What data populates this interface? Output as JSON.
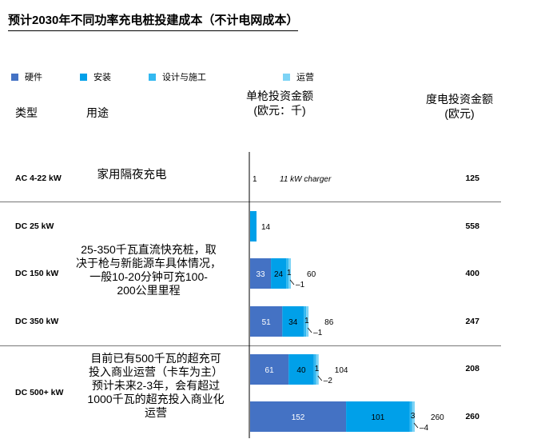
{
  "title": "预计2030年不同功率充电桩投建成本（不计电网成本）",
  "legend": [
    {
      "name": "硬件",
      "color": "#4472C4"
    },
    {
      "name": "安装",
      "color": "#00A0E9"
    },
    {
      "name": "设计与施工",
      "color": "#33B8F0"
    },
    {
      "name": "运营",
      "color": "#7DD3F5"
    }
  ],
  "headers": {
    "type": "类型",
    "usage": "用途",
    "invest_line1": "单枪投资金额",
    "invest_line2": "(欧元：千)",
    "kwh_line1": "度电投资金额",
    "kwh_line2": "(欧元)"
  },
  "usages": {
    "home": "家用隔夜充电",
    "fast_line1": "25-350千瓦直流快充桩，取",
    "fast_line2": "决于枪与新能源车具体情况，",
    "fast_line3": "一般10-20分钟可充100-",
    "fast_line4": "200公里里程",
    "ultra_line1": "目前已有500千瓦的超充可",
    "ultra_line2": "投入商业运营（卡车为主）",
    "ultra_line3": "预计未来2-3年，会有超过",
    "ultra_line4": "1000千瓦的超充投入商业化",
    "ultra_line5": "运营"
  },
  "chart_data": {
    "type": "bar",
    "orientation": "horizontal",
    "stacked": true,
    "xlabel": "单枪投资金额 (欧元：千)",
    "series_names": [
      "硬件",
      "安装",
      "设计与施工",
      "运营"
    ],
    "rows": [
      {
        "category": "AC 4-22 kW",
        "values": [
          1,
          0,
          0,
          0
        ],
        "total_label": "1",
        "annotation": "11 kW charger",
        "per_kwh": "125"
      },
      {
        "category": "DC 25 kW",
        "values": [
          14,
          0,
          0,
          0
        ],
        "total_label": "14",
        "per_kwh": "558"
      },
      {
        "category": "DC 150 kW",
        "values": [
          33,
          24,
          1,
          1
        ],
        "total_label": "60",
        "per_kwh": "400"
      },
      {
        "category": "DC 350 kW",
        "values": [
          51,
          34,
          1,
          1
        ],
        "total_label": "86",
        "per_kwh": "247"
      },
      {
        "category": "DC 500+ kW",
        "values": [
          61,
          40,
          1,
          2
        ],
        "total_label": "104",
        "per_kwh": "208"
      },
      {
        "category": "",
        "values": [
          152,
          101,
          3,
          4
        ],
        "total_label": "260",
        "per_kwh": "260"
      }
    ],
    "row_labels": [
      "AC 4-22 kW",
      "DC 25 kW",
      "DC 150 kW",
      "DC 350 kW",
      "DC 500+ kW"
    ]
  }
}
